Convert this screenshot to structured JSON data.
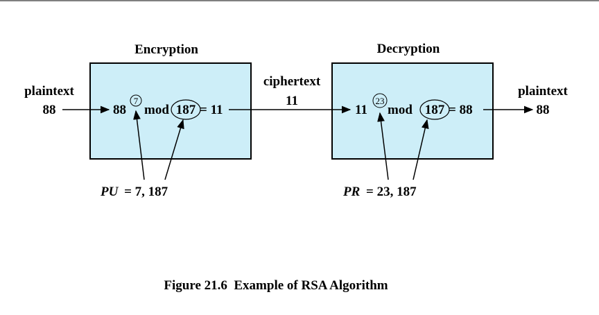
{
  "encryption_label": "Encryption",
  "decryption_label": "Decryption",
  "left_input": {
    "label": "plaintext",
    "value": "88"
  },
  "ciphertext": {
    "label": "ciphertext",
    "value": "11"
  },
  "right_output": {
    "label": "plaintext",
    "value": "88"
  },
  "encrypt_formula": {
    "base": "88",
    "exponent": "7",
    "mod_word": "mod",
    "modulus": "187",
    "result": "= 11"
  },
  "decrypt_formula": {
    "base": "11",
    "exponent": "23",
    "mod_word": "mod",
    "modulus": "187",
    "result": "= 88"
  },
  "public_key": {
    "name": "PU",
    "value": "= 7, 187"
  },
  "private_key": {
    "name": "PR",
    "value": "= 23, 187"
  },
  "caption": "Figure 21.6  Example of RSA Algorithm",
  "colors": {
    "box_fill": "#cdeef8",
    "stroke": "#000000"
  }
}
